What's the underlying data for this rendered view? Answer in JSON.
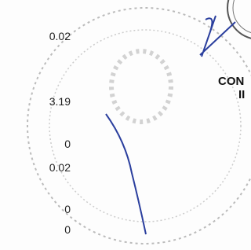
{
  "values": [
    "0.02",
    "3.19",
    "0",
    "0.02",
    "0",
    "0"
  ],
  "side_text": [
    "CON",
    "II"
  ]
}
